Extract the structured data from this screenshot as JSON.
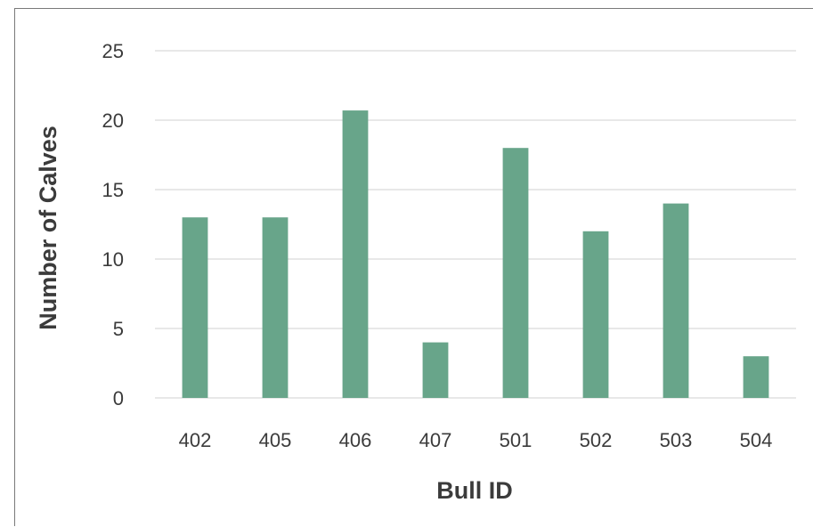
{
  "chart_data": {
    "type": "bar",
    "title": "",
    "xlabel": "Bull ID",
    "ylabel": "Number of Calves",
    "categories": [
      "402",
      "405",
      "406",
      "407",
      "501",
      "502",
      "503",
      "504"
    ],
    "values": [
      13,
      13,
      20.7,
      4,
      18,
      12,
      14,
      3
    ],
    "ylim": [
      0,
      25
    ],
    "yticks": [
      0,
      5,
      10,
      15,
      20,
      25
    ],
    "grid": true,
    "legend": "none",
    "bar_color": "#68a58a",
    "grid_color": "#d9d9d9",
    "text_color": "#3b3b3b"
  }
}
